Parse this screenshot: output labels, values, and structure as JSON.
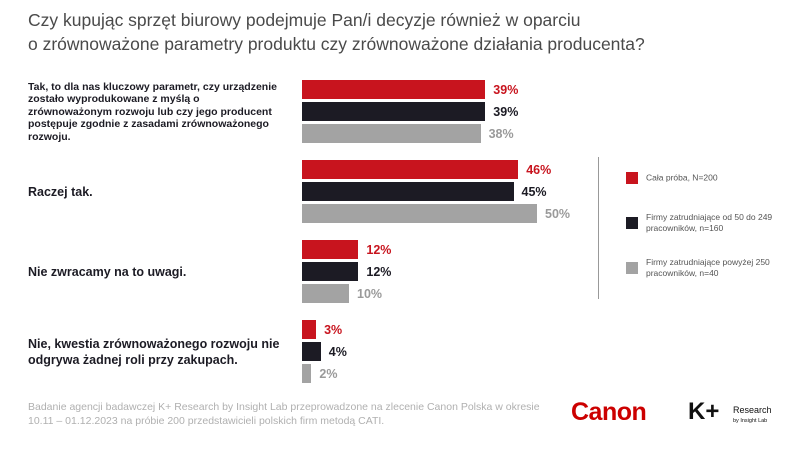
{
  "chart_data": {
    "type": "bar",
    "orientation": "horizontal",
    "title": [
      "Czy kupując sprzęt biurowy podejmuje Pan/i decyzje również w oparciu",
      "o zrównoważone parametry produktu czy zrównoważone działania producenta?"
    ],
    "categories": [
      "Tak, to dla nas kluczowy parametr, czy urządzenie zostało wyprodukowane z myślą o zrównoważonym rozwoju lub czy jego producent postępuje zgodnie z zasadami zrównoważonego rozwoju.",
      "Raczej tak.",
      "Nie zwracamy na to uwagi.",
      "Nie, kwestia zrównoważonego rozwoju nie odgrywa żadnej roli przy zakupach."
    ],
    "series": [
      {
        "name": "Cała próba, N=200",
        "color": "#c8141e",
        "values": [
          39,
          46,
          12,
          3
        ],
        "value_labels": [
          "39%",
          "46%",
          "12%",
          "3%"
        ]
      },
      {
        "name": "Firmy zatrudniające od 50 do 249 pracowników, n=160",
        "color": "#1c1b24",
        "values": [
          39,
          45,
          12,
          4
        ],
        "value_labels": [
          "39%",
          "45%",
          "12%",
          "4%"
        ]
      },
      {
        "name": "Firmy zatrudniające powyżej 250 pracowników, n=40",
        "color": "#a3a3a3",
        "values": [
          38,
          50,
          10,
          2
        ],
        "value_labels": [
          "38%",
          "50%",
          "10%",
          "2%"
        ]
      }
    ],
    "legend": "right",
    "source": "Badanie agencji badawczej K+ Research by Insight Lab przeprowadzone na zlecenie Canon Polska w okresie 10.11 – 01.12.2023 na próbie 200 przedstawicieli polskich firm metodą CATI."
  },
  "logos": {
    "canon": "Canon",
    "kplus": "K+",
    "research": "Research",
    "insight": "by Insight Lab"
  }
}
